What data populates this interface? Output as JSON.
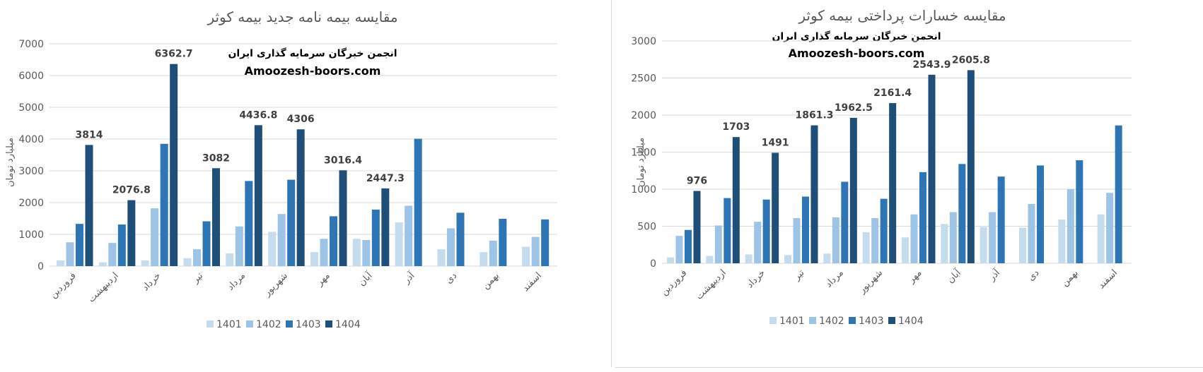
{
  "series_colors": [
    "#c5dcef",
    "#9dc3e6",
    "#2e75b6",
    "#1f4e79"
  ],
  "chart_data": [
    {
      "type": "bar",
      "title": "مقایسه بیمه نامه جدید بیمه کوثر",
      "ylabel": "میلیارد تومان",
      "xlabel": "",
      "watermark": [
        "انجمن خبرگان سرمایه گذاری ایران",
        "Amoozesh-boors.com"
      ],
      "ylim": [
        0,
        7000
      ],
      "yticks": [
        0,
        1000,
        2000,
        3000,
        4000,
        5000,
        6000,
        7000
      ],
      "grid": true,
      "legend": "bottom",
      "categories": [
        "فروردین",
        "اردیبهشت",
        "خرداد",
        "تیر",
        "مرداد",
        "شهریور",
        "مهر",
        "آبان",
        "آذر",
        "دی",
        "بهمن",
        "اسفند"
      ],
      "series": [
        {
          "name": "1401",
          "values": [
            180,
            120,
            180,
            250,
            400,
            1080,
            440,
            860,
            1380,
            530,
            440,
            610
          ]
        },
        {
          "name": "1402",
          "values": [
            750,
            730,
            1820,
            530,
            1250,
            1640,
            860,
            820,
            1900,
            1190,
            800,
            920
          ]
        },
        {
          "name": "1403",
          "values": [
            1330,
            1310,
            3850,
            1410,
            2680,
            2720,
            1570,
            1780,
            4010,
            1680,
            1490,
            1470
          ]
        },
        {
          "name": "1404",
          "values": [
            3814,
            2076.8,
            6362.7,
            3082,
            4436.8,
            4306,
            3016.4,
            2447.3,
            null,
            null,
            null,
            null
          ]
        }
      ],
      "data_labels": [
        "3814",
        "2076.8",
        "6362.7",
        "3082",
        "4436.8",
        "4306",
        "3016.4",
        "2447.3"
      ]
    },
    {
      "type": "bar",
      "title": "مقایسه خسارات پرداختی بیمه کوثر",
      "ylabel": "میلیارد تومان",
      "xlabel": "",
      "watermark": [
        "انجمن خبرگان سرمایه گذاری ایران",
        "Amoozesh-boors.com"
      ],
      "ylim": [
        0,
        3000
      ],
      "yticks": [
        0,
        500,
        1000,
        1500,
        2000,
        2500,
        3000
      ],
      "grid": true,
      "legend": "bottom",
      "categories": [
        "فروردین",
        "اردیبهشت",
        "خرداد",
        "تیر",
        "مرداد",
        "شهریور",
        "مهر",
        "آبان",
        "آذر",
        "دی",
        "بهمن",
        "اسفند"
      ],
      "series": [
        {
          "name": "1401",
          "values": [
            80,
            100,
            120,
            110,
            130,
            420,
            350,
            530,
            490,
            480,
            590,
            660
          ]
        },
        {
          "name": "1402",
          "values": [
            370,
            510,
            560,
            610,
            620,
            610,
            660,
            690,
            690,
            800,
            1000,
            950
          ]
        },
        {
          "name": "1403",
          "values": [
            450,
            880,
            860,
            900,
            1100,
            870,
            1230,
            1340,
            1170,
            1320,
            1390,
            1860
          ]
        },
        {
          "name": "1404",
          "values": [
            976,
            1703,
            1491,
            1861.3,
            1962.5,
            2161.4,
            2543.9,
            2605.8,
            null,
            null,
            null,
            null
          ]
        }
      ],
      "data_labels": [
        "976",
        "1703",
        "1491",
        "1861.3",
        "1962.5",
        "2161.4",
        "2543.9",
        "2605.8"
      ]
    }
  ]
}
